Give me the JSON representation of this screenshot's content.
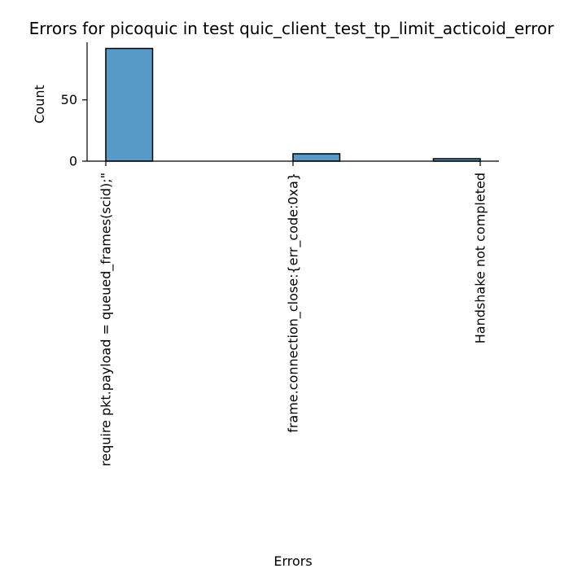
{
  "chart_data": {
    "type": "bar",
    "title": "Errors for picoquic in test quic_client_test_tp_limit_acticoid_error",
    "xlabel": "Errors",
    "ylabel": "Count",
    "categories": [
      "require pkt.payload = queued_frames(scid);\"",
      "frame.connection_close:{err_code:0xa}",
      "Handshake not completed"
    ],
    "bars": [
      {
        "x0": 0.0,
        "x1": 0.25,
        "value": 92
      },
      {
        "x0": 1.0,
        "x1": 1.25,
        "value": 6
      },
      {
        "x0": 1.75,
        "x1": 2.0,
        "value": 2
      }
    ],
    "xlim": [
      -0.1,
      2.1
    ],
    "ylim": [
      0,
      97
    ],
    "yticks": [
      0,
      50
    ],
    "bar_color": "#5799c7",
    "edge_color": "#000000",
    "grid": false,
    "legend": "none"
  }
}
